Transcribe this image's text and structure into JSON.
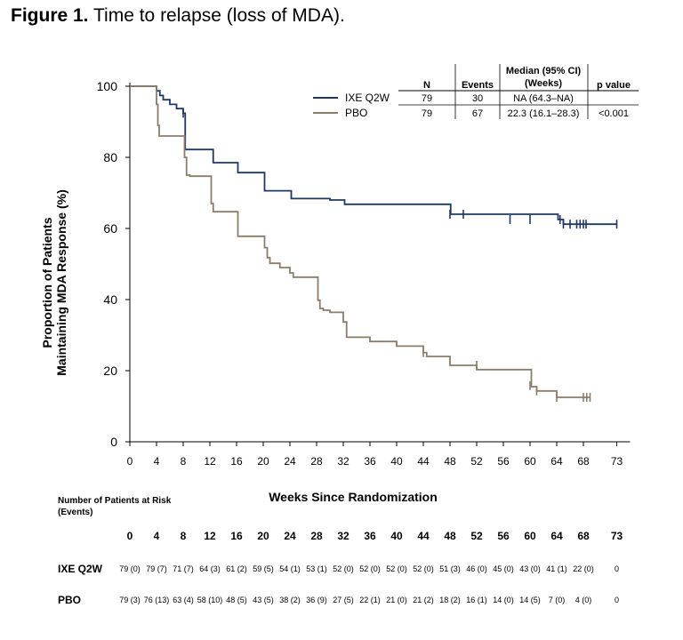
{
  "figure": {
    "label": "Figure 1.",
    "caption": "Time to relapse (loss of MDA)."
  },
  "chart_data": {
    "type": "line",
    "subtype": "kaplan-meier",
    "title": "Time to relapse (loss of MDA).",
    "xlabel": "Weeks Since Randomization",
    "ylabel_line1": "Proportion of Patients",
    "ylabel_line2": "Maintaining MDA Response (%)",
    "xlim": [
      0,
      75
    ],
    "ylim": [
      0,
      100
    ],
    "x_ticks": [
      0,
      4,
      8,
      12,
      16,
      20,
      24,
      28,
      32,
      36,
      40,
      44,
      48,
      52,
      56,
      60,
      64,
      68,
      73
    ],
    "y_ticks": [
      0,
      20,
      40,
      60,
      80,
      100
    ],
    "series": [
      {
        "name": "IXE Q2W",
        "color": "#1f3864",
        "steps": [
          [
            0,
            100
          ],
          [
            4,
            100
          ],
          [
            4,
            98.7
          ],
          [
            4.5,
            97.4
          ],
          [
            5,
            96.2
          ],
          [
            6,
            94.9
          ],
          [
            7,
            93.7
          ],
          [
            8,
            92.4
          ],
          [
            8.3,
            82.2
          ],
          [
            12.4,
            82.2
          ],
          [
            12.5,
            78.5
          ],
          [
            16,
            78.5
          ],
          [
            16.2,
            75.7
          ],
          [
            20,
            75.7
          ],
          [
            20.2,
            70.6
          ],
          [
            24,
            70.6
          ],
          [
            24.2,
            68.4
          ],
          [
            28,
            68.4
          ],
          [
            30,
            68
          ],
          [
            32,
            68
          ],
          [
            32.2,
            66.8
          ],
          [
            48,
            66.8
          ],
          [
            48.1,
            64
          ],
          [
            64,
            64
          ],
          [
            64.2,
            62.5
          ],
          [
            65,
            61.2
          ],
          [
            73,
            61.2
          ]
        ],
        "censors": [
          [
            8,
            92.4
          ],
          [
            48,
            64
          ],
          [
            50,
            64
          ],
          [
            57,
            62.5
          ],
          [
            60,
            62.5
          ],
          [
            64.5,
            62.5
          ],
          [
            65,
            61.2
          ],
          [
            66,
            61.2
          ],
          [
            67,
            61.2
          ],
          [
            67.5,
            61.2
          ],
          [
            68,
            61.2
          ],
          [
            68.4,
            61.2
          ],
          [
            73,
            61.2
          ]
        ]
      },
      {
        "name": "PBO",
        "color": "#8c7d6b",
        "steps": [
          [
            0,
            100
          ],
          [
            4,
            100
          ],
          [
            4,
            94.9
          ],
          [
            4.2,
            89
          ],
          [
            4.4,
            86
          ],
          [
            8,
            86
          ],
          [
            8.2,
            80
          ],
          [
            8.5,
            75
          ],
          [
            9,
            74.7
          ],
          [
            12,
            74.7
          ],
          [
            12.2,
            67
          ],
          [
            12.5,
            64.7
          ],
          [
            16,
            64.7
          ],
          [
            16.2,
            57.8
          ],
          [
            20,
            57.8
          ],
          [
            20.2,
            54.6
          ],
          [
            20.6,
            51.8
          ],
          [
            21,
            50.2
          ],
          [
            22.5,
            49
          ],
          [
            24,
            47.5
          ],
          [
            24.5,
            46.3
          ],
          [
            28,
            46.3
          ],
          [
            28.2,
            39.8
          ],
          [
            28.5,
            37.5
          ],
          [
            29,
            37
          ],
          [
            30,
            36.4
          ],
          [
            32,
            33.7
          ],
          [
            32.5,
            29.4
          ],
          [
            36,
            28.2
          ],
          [
            40,
            26.9
          ],
          [
            44,
            25.1
          ],
          [
            44.5,
            24
          ],
          [
            48,
            21.5
          ],
          [
            52,
            20.3
          ],
          [
            60,
            20.3
          ],
          [
            60.2,
            15.5
          ],
          [
            61,
            14.3
          ],
          [
            64,
            12.5
          ],
          [
            69,
            12.5
          ]
        ],
        "censors": [
          [
            44,
            25.1
          ],
          [
            52,
            21.5
          ],
          [
            60,
            15.8
          ],
          [
            61,
            14.3
          ],
          [
            64,
            12.5
          ],
          [
            68,
            12.5
          ],
          [
            68.5,
            12.5
          ],
          [
            69,
            12.5
          ]
        ]
      }
    ],
    "legend_table": {
      "headers": [
        "",
        "N",
        "Events",
        "Median (95% CI)",
        "p value"
      ],
      "median_header_line1": "Median (95% CI)",
      "median_header_line2": "(Weeks)",
      "rows": [
        {
          "label": "IXE Q2W",
          "n": "79",
          "events": "30",
          "median": "NA (64.3–NA)",
          "p": ""
        },
        {
          "label": "PBO",
          "n": "79",
          "events": "67",
          "median": "22.3 (16.1–28.3)",
          "p": "<0.001"
        }
      ]
    }
  },
  "risk_table": {
    "title_line1": "Number of Patients at Risk",
    "title_line2": "(Events)",
    "weeks": [
      "0",
      "4",
      "8",
      "12",
      "16",
      "20",
      "24",
      "28",
      "32",
      "36",
      "40",
      "44",
      "48",
      "52",
      "56",
      "60",
      "64",
      "68",
      "73"
    ],
    "rows": [
      {
        "label": "IXE Q2W",
        "values": [
          "79 (0)",
          "79 (7)",
          "71 (7)",
          "64 (3)",
          "61 (2)",
          "59 (5)",
          "54 (1)",
          "53 (1)",
          "52 (0)",
          "52 (0)",
          "52 (0)",
          "52 (0)",
          "51 (3)",
          "46 (0)",
          "45 (0)",
          "43 (0)",
          "41 (1)",
          "22 (0)",
          "0"
        ]
      },
      {
        "label": "PBO",
        "values": [
          "79 (3)",
          "76 (13)",
          "63 (4)",
          "58 (10)",
          "48 (5)",
          "43 (5)",
          "38 (2)",
          "36 (9)",
          "27 (5)",
          "22 (1)",
          "21 (0)",
          "21 (2)",
          "18 (2)",
          "16 (1)",
          "14 (0)",
          "14 (5)",
          "7 (0)",
          "4 (0)",
          "0"
        ]
      }
    ]
  }
}
